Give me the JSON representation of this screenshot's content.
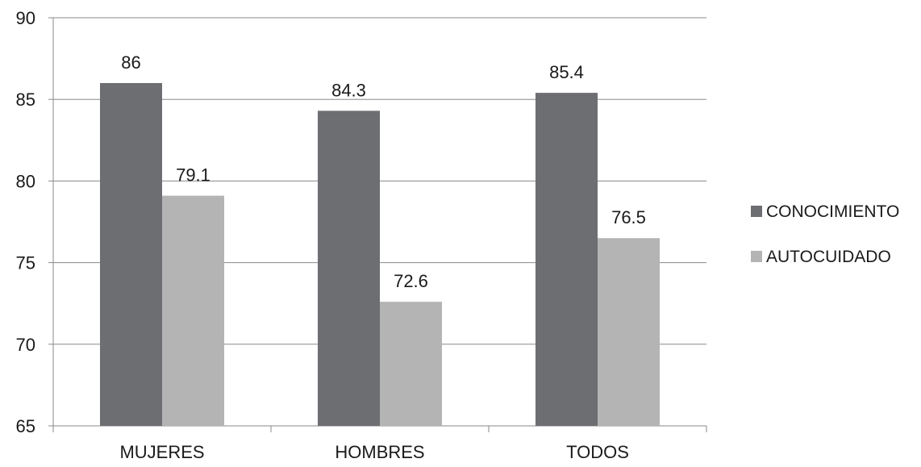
{
  "chart_data": {
    "type": "bar",
    "categories": [
      "MUJERES",
      "HOMBRES",
      "TODOS"
    ],
    "series": [
      {
        "name": "CONOCIMIENTO",
        "values": [
          86,
          84.3,
          85.4
        ],
        "labels": [
          "86",
          "84.3",
          "85.4"
        ],
        "color": "#6d6e71"
      },
      {
        "name": "AUTOCUIDADO",
        "values": [
          79.1,
          72.6,
          76.5
        ],
        "labels": [
          "79.1",
          "72.6",
          "76.5"
        ],
        "color": "#b3b4b3"
      }
    ],
    "title": "",
    "xlabel": "",
    "ylabel": "",
    "ylim": [
      65,
      90
    ],
    "yticks": [
      "65",
      "70",
      "75",
      "80",
      "85",
      "90"
    ],
    "grid": true,
    "legend_position": "right"
  }
}
